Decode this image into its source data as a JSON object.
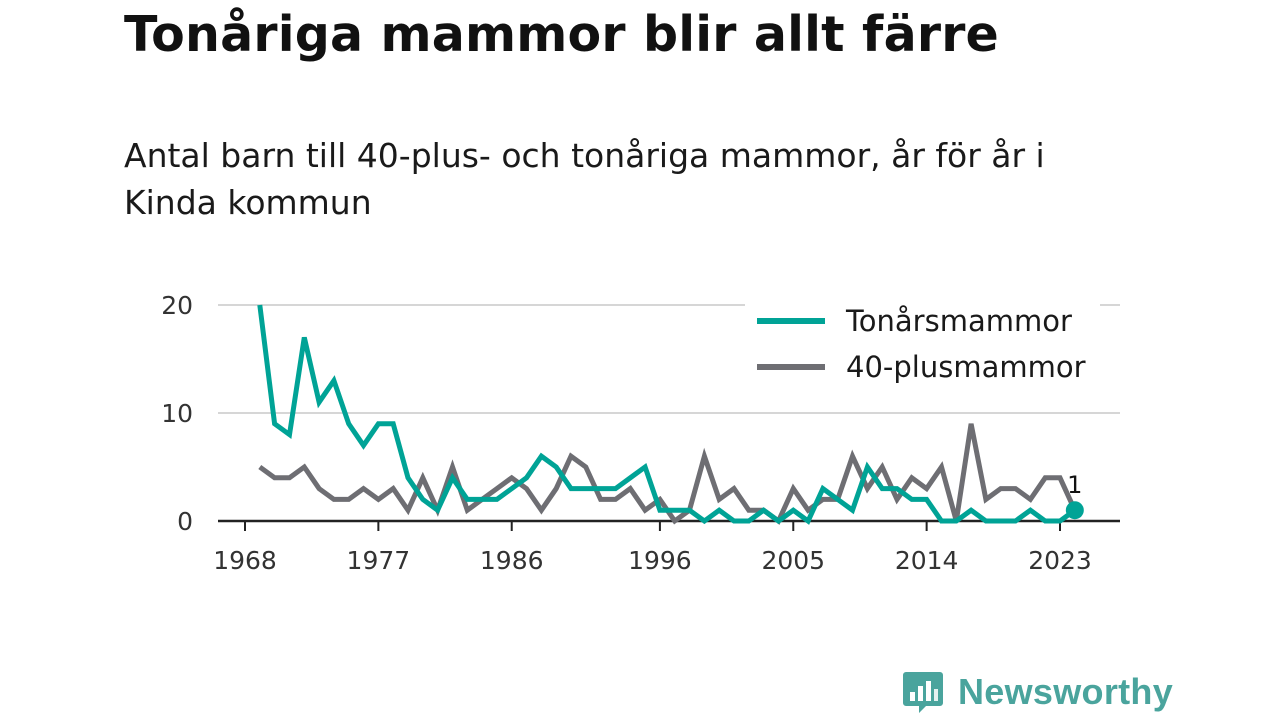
{
  "title": "Tonåriga mammor blir allt färre",
  "subtitle": "Antal barn till 40-plus- och tonåriga mammor, år för år i Kinda kommun",
  "brand": {
    "name": "Newsworthy",
    "icon": "newsworthy-logo-icon"
  },
  "colors": {
    "teen": "#00a396",
    "forty_plus": "#6e6e73",
    "grid": "#d6d6d6",
    "axis": "#222222",
    "brand": "#4aa49d"
  },
  "chart_data": {
    "type": "line",
    "x": [
      1969,
      1970,
      1971,
      1972,
      1973,
      1974,
      1975,
      1976,
      1977,
      1978,
      1979,
      1980,
      1981,
      1982,
      1983,
      1984,
      1985,
      1986,
      1987,
      1988,
      1989,
      1990,
      1991,
      1992,
      1993,
      1994,
      1995,
      1996,
      1997,
      1998,
      1999,
      2000,
      2001,
      2002,
      2003,
      2004,
      2005,
      2006,
      2007,
      2008,
      2009,
      2010,
      2011,
      2012,
      2013,
      2014,
      2015,
      2016,
      2017,
      2018,
      2019,
      2020,
      2021,
      2022,
      2023,
      2024
    ],
    "x_ticks": [
      1968,
      1977,
      1986,
      1996,
      2005,
      2014,
      2023
    ],
    "y_ticks": [
      0,
      10,
      20
    ],
    "ylim": [
      0,
      20
    ],
    "grid": "horizontal",
    "legend_position": "top-right",
    "series": [
      {
        "name": "Tonårsmammor",
        "color": "#00a396",
        "values": [
          20,
          9,
          8,
          17,
          11,
          13,
          9,
          7,
          9,
          9,
          4,
          2,
          1,
          4,
          2,
          2,
          2,
          3,
          4,
          6,
          5,
          3,
          3,
          3,
          3,
          4,
          5,
          1,
          1,
          1,
          0,
          1,
          0,
          0,
          1,
          0,
          1,
          0,
          3,
          2,
          1,
          5,
          3,
          3,
          2,
          2,
          0,
          0,
          1,
          0,
          0,
          0,
          1,
          0,
          0,
          1
        ]
      },
      {
        "name": "40-plusmammor",
        "color": "#6e6e73",
        "values": [
          5,
          4,
          4,
          5,
          3,
          2,
          2,
          3,
          2,
          3,
          1,
          4,
          1,
          5,
          1,
          2,
          3,
          4,
          3,
          1,
          3,
          6,
          5,
          2,
          2,
          3,
          1,
          2,
          0,
          1,
          6,
          2,
          3,
          1,
          1,
          0,
          3,
          1,
          2,
          2,
          6,
          3,
          5,
          2,
          4,
          3,
          5,
          0,
          9,
          2,
          3,
          3,
          2,
          4,
          4,
          1
        ]
      }
    ],
    "end_label": {
      "series": "Tonårsmammor",
      "x": 2024,
      "text": "1"
    }
  }
}
